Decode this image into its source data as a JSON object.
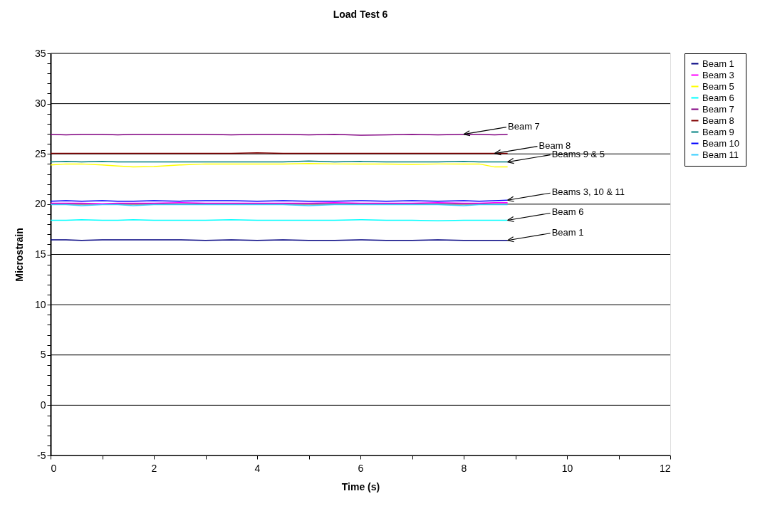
{
  "chart_data": {
    "type": "line",
    "title": "Load Test 6",
    "xlabel": "Time (s)",
    "ylabel": "Microstrain",
    "x": [
      0,
      0.3,
      0.6,
      1,
      1.3,
      1.6,
      2,
      2.5,
      3,
      3.5,
      4,
      4.5,
      5,
      5.5,
      6,
      6.5,
      7,
      7.5,
      8,
      8.3,
      8.6,
      8.85
    ],
    "series": [
      {
        "name": "Beam 1",
        "color": "#000080",
        "values": [
          16.45,
          16.45,
          16.4,
          16.45,
          16.45,
          16.45,
          16.45,
          16.45,
          16.4,
          16.45,
          16.4,
          16.45,
          16.4,
          16.4,
          16.45,
          16.4,
          16.4,
          16.45,
          16.4,
          16.4,
          16.4,
          16.4
        ]
      },
      {
        "name": "Beam 3",
        "color": "#ff00ff",
        "values": [
          20.1,
          20.1,
          20.1,
          20.05,
          20.1,
          20.1,
          20.1,
          20.15,
          20.1,
          20.1,
          20.1,
          20.1,
          20.1,
          20.15,
          20.1,
          20.1,
          20.1,
          20.15,
          20.1,
          20.1,
          20.15,
          20.15
        ]
      },
      {
        "name": "Beam 5",
        "color": "#ffff00",
        "values": [
          23.9,
          24.0,
          24.0,
          23.9,
          23.8,
          23.7,
          23.75,
          23.9,
          24.0,
          24.0,
          24.0,
          24.0,
          24.05,
          24.0,
          24.0,
          24.0,
          23.95,
          24.0,
          24.0,
          24.0,
          23.7,
          23.7
        ]
      },
      {
        "name": "Beam 6",
        "color": "#00ffff",
        "values": [
          18.4,
          18.4,
          18.45,
          18.4,
          18.4,
          18.45,
          18.4,
          18.4,
          18.4,
          18.45,
          18.4,
          18.4,
          18.4,
          18.4,
          18.45,
          18.4,
          18.4,
          18.35,
          18.4,
          18.4,
          18.4,
          18.4
        ]
      },
      {
        "name": "Beam 7",
        "color": "#800080",
        "values": [
          26.95,
          26.9,
          26.95,
          26.95,
          26.9,
          26.95,
          26.95,
          26.95,
          26.95,
          26.9,
          26.95,
          26.95,
          26.9,
          26.95,
          26.85,
          26.9,
          26.95,
          26.9,
          26.95,
          26.95,
          26.9,
          26.95
        ]
      },
      {
        "name": "Beam 8",
        "color": "#800000",
        "values": [
          25.05,
          25.05,
          25.05,
          25.05,
          25.05,
          25.05,
          25.05,
          25.05,
          25.05,
          25.05,
          25.1,
          25.05,
          25.05,
          25.05,
          25.05,
          25.05,
          25.05,
          25.05,
          25.05,
          25.05,
          25.05,
          25.05
        ]
      },
      {
        "name": "Beam 9",
        "color": "#008080",
        "values": [
          24.2,
          24.25,
          24.2,
          24.25,
          24.2,
          24.2,
          24.2,
          24.2,
          24.2,
          24.2,
          24.2,
          24.2,
          24.3,
          24.2,
          24.25,
          24.2,
          24.2,
          24.2,
          24.25,
          24.2,
          24.2,
          24.2
        ]
      },
      {
        "name": "Beam 10",
        "color": "#0000ff",
        "values": [
          20.3,
          20.35,
          20.3,
          20.35,
          20.3,
          20.3,
          20.35,
          20.3,
          20.35,
          20.35,
          20.3,
          20.35,
          20.3,
          20.3,
          20.35,
          20.3,
          20.35,
          20.3,
          20.35,
          20.3,
          20.35,
          20.4
        ]
      },
      {
        "name": "Beam 11",
        "color": "#33ccff",
        "values": [
          19.95,
          19.95,
          19.85,
          19.95,
          19.95,
          19.85,
          19.95,
          19.95,
          19.95,
          19.95,
          19.95,
          19.95,
          19.85,
          19.95,
          19.95,
          19.95,
          19.95,
          19.95,
          19.85,
          19.95,
          19.95,
          19.95
        ]
      }
    ],
    "xlim": [
      0,
      12
    ],
    "xticks": [
      0,
      {
        "value": 1,
        "label": null
      },
      2,
      {
        "value": 3,
        "label": null
      },
      4,
      {
        "value": 5,
        "label": null
      },
      6,
      {
        "value": 7,
        "label": null
      },
      8,
      {
        "value": 9,
        "label": null
      },
      10,
      {
        "value": 11,
        "label": null
      },
      12
    ],
    "ylim": [
      -5,
      35
    ],
    "yticks": [
      -5,
      {
        "value": -4,
        "label": null
      },
      {
        "value": -3,
        "label": null
      },
      {
        "value": -2,
        "label": null
      },
      {
        "value": -1,
        "label": null
      },
      0,
      {
        "value": 1,
        "label": null
      },
      {
        "value": 2,
        "label": null
      },
      {
        "value": 3,
        "label": null
      },
      {
        "value": 4,
        "label": null
      },
      5,
      {
        "value": 6,
        "label": null
      },
      {
        "value": 7,
        "label": null
      },
      {
        "value": 8,
        "label": null
      },
      {
        "value": 9,
        "label": null
      },
      10,
      {
        "value": 11,
        "label": null
      },
      {
        "value": 12,
        "label": null
      },
      {
        "value": 13,
        "label": null
      },
      {
        "value": 14,
        "label": null
      },
      15,
      {
        "value": 16,
        "label": null
      },
      {
        "value": 17,
        "label": null
      },
      {
        "value": 18,
        "label": null
      },
      {
        "value": 19,
        "label": null
      },
      20,
      {
        "value": 21,
        "label": null
      },
      {
        "value": 22,
        "label": null
      },
      {
        "value": 23,
        "label": null
      },
      {
        "value": 24,
        "label": null
      },
      25,
      {
        "value": 26,
        "label": null
      },
      {
        "value": 27,
        "label": null
      },
      {
        "value": 28,
        "label": null
      },
      {
        "value": 29,
        "label": null
      },
      30,
      {
        "value": 31,
        "label": null
      },
      {
        "value": 32,
        "label": null
      },
      {
        "value": 33,
        "label": null
      },
      {
        "value": 34,
        "label": null
      },
      35
    ],
    "grid": "y",
    "legend": "right",
    "marker": "none",
    "line_style": "solid",
    "annotations": [
      {
        "text": "Beam 7",
        "x": 8,
        "y": 26.95
      },
      {
        "text": "Beam 8",
        "x": 8.6,
        "y": 25.05
      },
      {
        "text": "Beams 9 & 5",
        "x": 8.85,
        "y": 24.2
      },
      {
        "text": "Beams 3, 10 & 11",
        "x": 8.85,
        "y": 20.4
      },
      {
        "text": "Beam 6",
        "x": 8.85,
        "y": 18.4
      },
      {
        "text": "Beam 1",
        "x": 8.85,
        "y": 16.4
      }
    ]
  }
}
